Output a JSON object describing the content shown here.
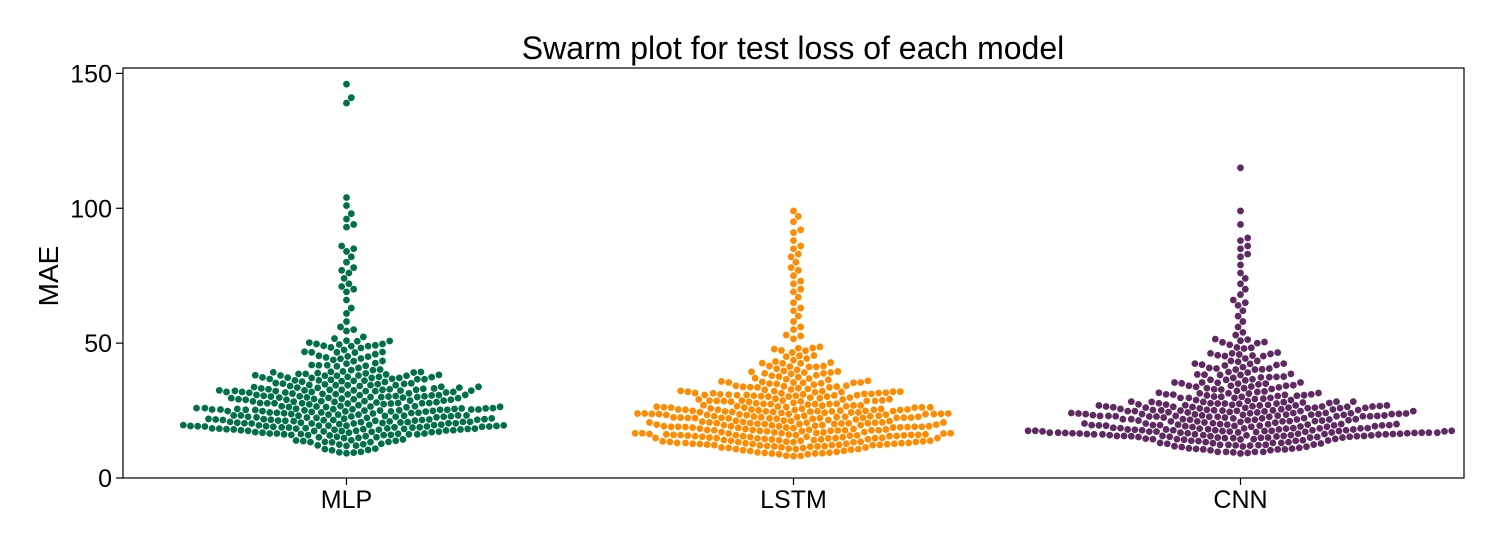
{
  "chart_data": {
    "type": "scatter",
    "subtype": "swarm",
    "title": "Swarm plot for test loss of each model",
    "xlabel": "",
    "ylabel": "MAE",
    "categories": [
      "MLP",
      "LSTM",
      "CNN"
    ],
    "ylim": [
      0,
      152
    ],
    "yticks": [
      0,
      50,
      100,
      150
    ],
    "grid": false,
    "legend": "none",
    "series": [
      {
        "category": "MLP",
        "color": "#00704A",
        "count": 400,
        "summary": {
          "min": 9,
          "q1": 20,
          "median": 27,
          "q3": 35,
          "max": 146
        },
        "upper_points": [
          146,
          141,
          139,
          104,
          101,
          98,
          96,
          94,
          93,
          86,
          85,
          84,
          82,
          80,
          78,
          77,
          76,
          74,
          72,
          71,
          70,
          69,
          66,
          63,
          61,
          58,
          56,
          55
        ]
      },
      {
        "category": "LSTM",
        "color": "#FF8C00",
        "count": 400,
        "summary": {
          "min": 7,
          "q1": 17,
          "median": 22,
          "q3": 29,
          "max": 99
        },
        "upper_points": [
          99,
          97,
          95,
          92,
          91,
          88,
          86,
          85,
          83,
          82,
          80,
          78,
          77,
          75,
          73,
          72,
          70,
          69,
          67,
          65,
          63,
          62,
          60,
          58,
          56,
          55,
          53
        ]
      },
      {
        "category": "CNN",
        "color": "#5F2A62",
        "count": 400,
        "summary": {
          "min": 9,
          "q1": 17,
          "median": 23,
          "q3": 30,
          "max": 115
        },
        "upper_points": [
          115,
          99,
          94,
          89,
          88,
          86,
          85,
          83,
          82,
          79,
          76,
          74,
          72,
          70,
          68,
          66,
          65,
          64,
          62,
          60,
          58,
          56,
          54,
          53
        ]
      }
    ]
  }
}
